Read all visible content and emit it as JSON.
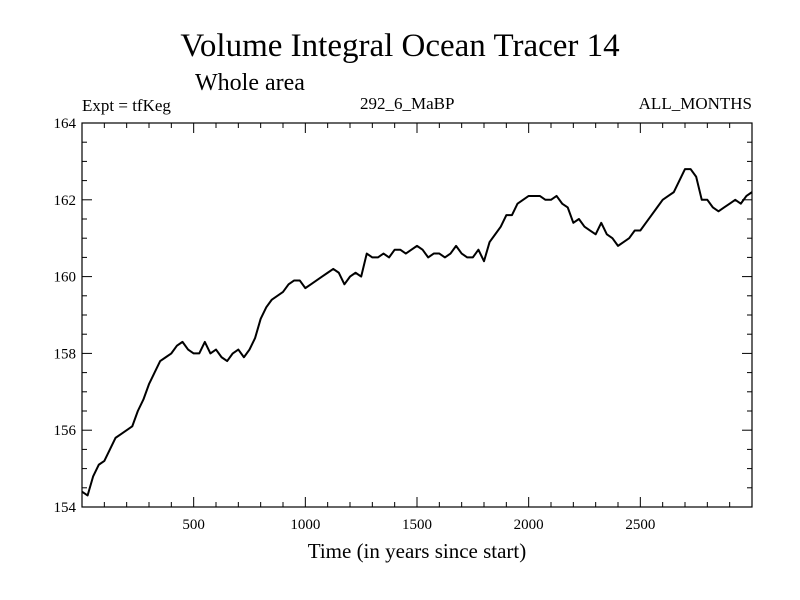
{
  "header": {
    "title": "Volume Integral Ocean Tracer 14",
    "subtitle": "Whole area",
    "left_label": "Expt = tfKeg",
    "center_label": "292_6_MaBP",
    "right_label": "ALL_MONTHS"
  },
  "chart_data": {
    "type": "line",
    "title": "Volume Integral Ocean Tracer 14",
    "subtitle": "Whole area",
    "xlabel": "Time (in years since start)",
    "ylabel": "",
    "xlim": [
      0,
      3000
    ],
    "ylim": [
      154,
      164
    ],
    "xticks": [
      500,
      1000,
      1500,
      2000,
      2500
    ],
    "yticks": [
      154,
      156,
      158,
      160,
      162,
      164
    ],
    "grid": false,
    "series": [
      {
        "name": "",
        "x": [
          0,
          25,
          50,
          75,
          100,
          125,
          150,
          175,
          200,
          225,
          250,
          275,
          300,
          325,
          350,
          375,
          400,
          425,
          450,
          475,
          500,
          525,
          550,
          575,
          600,
          625,
          650,
          675,
          700,
          725,
          750,
          775,
          800,
          825,
          850,
          875,
          900,
          925,
          950,
          975,
          1000,
          1025,
          1050,
          1075,
          1100,
          1125,
          1150,
          1175,
          1200,
          1225,
          1250,
          1275,
          1300,
          1325,
          1350,
          1375,
          1400,
          1425,
          1450,
          1475,
          1500,
          1525,
          1550,
          1575,
          1600,
          1625,
          1650,
          1675,
          1700,
          1725,
          1750,
          1775,
          1800,
          1825,
          1850,
          1875,
          1900,
          1925,
          1950,
          1975,
          2000,
          2025,
          2050,
          2075,
          2100,
          2125,
          2150,
          2175,
          2200,
          2225,
          2250,
          2275,
          2300,
          2325,
          2350,
          2375,
          2400,
          2425,
          2450,
          2475,
          2500,
          2525,
          2550,
          2575,
          2600,
          2625,
          2650,
          2675,
          2700,
          2725,
          2750,
          2775,
          2800,
          2825,
          2850,
          2875,
          2900,
          2925,
          2950,
          2975,
          3000
        ],
        "y": [
          154.4,
          154.3,
          154.8,
          155.1,
          155.2,
          155.5,
          155.8,
          155.9,
          156.0,
          156.1,
          156.5,
          156.8,
          157.2,
          157.5,
          157.8,
          157.9,
          158.0,
          158.2,
          158.3,
          158.1,
          158.0,
          158.0,
          158.3,
          158.0,
          158.1,
          157.9,
          157.8,
          158.0,
          158.1,
          157.9,
          158.1,
          158.4,
          158.9,
          159.2,
          159.4,
          159.5,
          159.6,
          159.8,
          159.9,
          159.9,
          159.7,
          159.8,
          159.9,
          160.0,
          160.1,
          160.2,
          160.1,
          159.8,
          160.0,
          160.1,
          160.0,
          160.6,
          160.5,
          160.5,
          160.6,
          160.5,
          160.7,
          160.7,
          160.6,
          160.7,
          160.8,
          160.7,
          160.5,
          160.6,
          160.6,
          160.5,
          160.6,
          160.8,
          160.6,
          160.5,
          160.5,
          160.7,
          160.4,
          160.9,
          161.1,
          161.3,
          161.6,
          161.6,
          161.9,
          162.0,
          162.1,
          162.1,
          162.1,
          162.0,
          162.0,
          162.1,
          161.9,
          161.8,
          161.4,
          161.5,
          161.3,
          161.2,
          161.1,
          161.4,
          161.1,
          161.0,
          160.8,
          160.9,
          161.0,
          161.2,
          161.2,
          161.4,
          161.6,
          161.8,
          162.0,
          162.1,
          162.2,
          162.5,
          162.8,
          162.8,
          162.6,
          162.0,
          162.0,
          161.8,
          161.7,
          161.8,
          161.9,
          162.0,
          161.9,
          162.1,
          162.2
        ]
      }
    ]
  }
}
